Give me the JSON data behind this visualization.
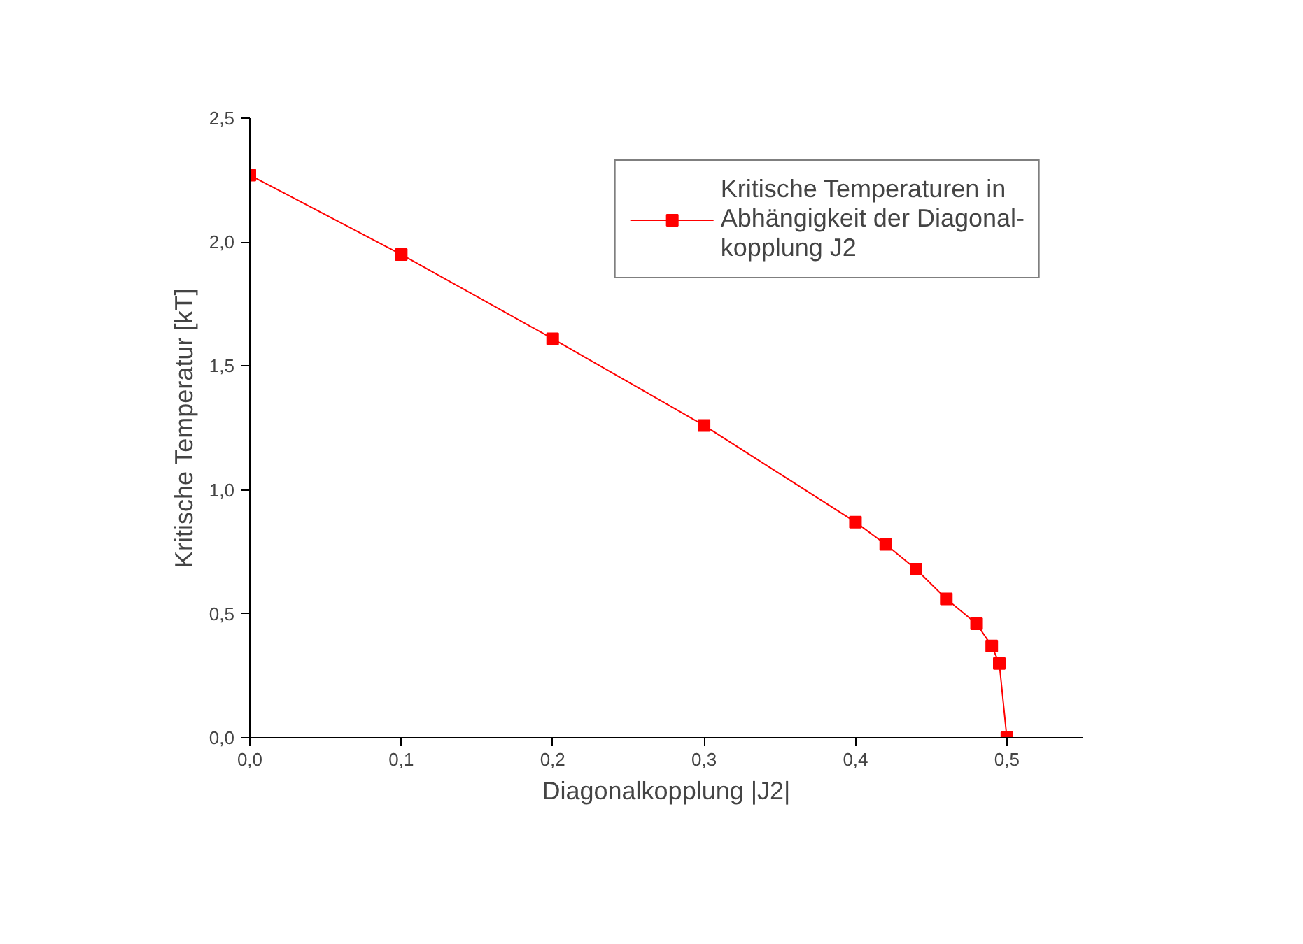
{
  "chart_data": {
    "type": "line",
    "xlabel": "Diagonalkopplung |J2|",
    "ylabel": "Kritische Temperatur [kT]",
    "x": [
      0,
      0.1,
      0.2,
      0.3,
      0.4,
      0.42,
      0.44,
      0.46,
      0.48,
      0.49,
      0.495,
      0.5
    ],
    "series": [
      {
        "name": "Kritische Temperaturen in\nAbhängigkeit der Diagonal-\nkopplung J2",
        "color": "#ff0000",
        "values": [
          2.27,
          1.95,
          1.61,
          1.26,
          0.87,
          0.78,
          0.68,
          0.56,
          0.46,
          0.37,
          0.3,
          0.0
        ]
      }
    ],
    "xlim": [
      0,
      0.55
    ],
    "ylim": [
      0,
      2.5
    ],
    "xticks": [
      {
        "value": 0,
        "label": "0,0"
      },
      {
        "value": 0.1,
        "label": "0,1"
      },
      {
        "value": 0.2,
        "label": "0,2"
      },
      {
        "value": 0.3,
        "label": "0,3"
      },
      {
        "value": 0.4,
        "label": "0,4"
      },
      {
        "value": 0.5,
        "label": "0,5"
      }
    ],
    "yticks": [
      {
        "value": 0,
        "label": "0,0"
      },
      {
        "value": 0.5,
        "label": "0,5"
      },
      {
        "value": 1.0,
        "label": "1,0"
      },
      {
        "value": 1.5,
        "label": "1,5"
      },
      {
        "value": 2.0,
        "label": "2,0"
      },
      {
        "value": 2.5,
        "label": "2,5"
      }
    ],
    "marker": "square",
    "line_style": "solid",
    "legend": "top right",
    "grid": false
  }
}
